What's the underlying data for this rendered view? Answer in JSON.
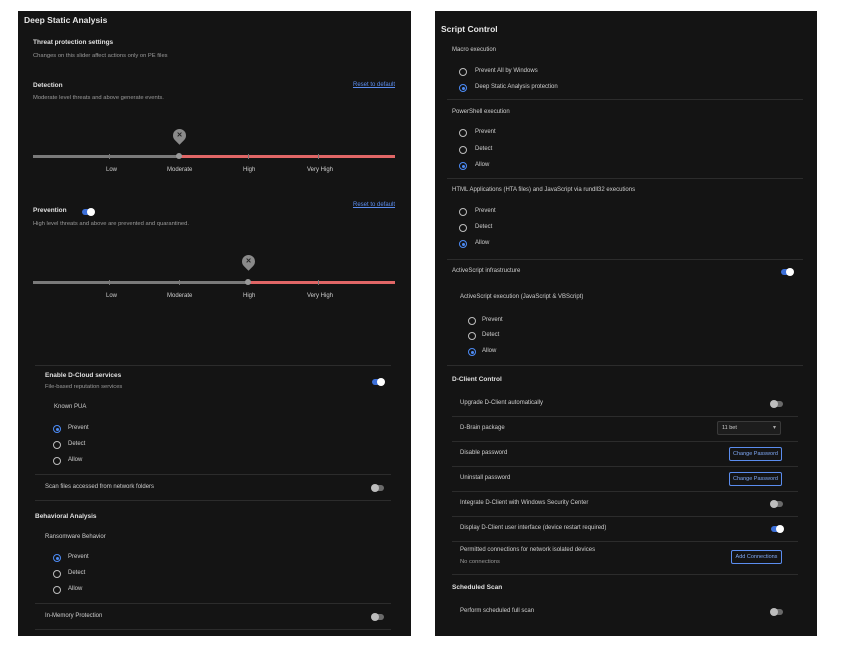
{
  "left": {
    "title": "Deep Static Analysis",
    "threat": {
      "heading": "Threat protection settings",
      "sub": "Changes on this slider affect actions only on PE files"
    },
    "detection": {
      "heading": "Detection",
      "sub": "Moderate level threats and above generate events.",
      "reset": "Reset to default",
      "level": "Moderate"
    },
    "prevention": {
      "heading": "Prevention",
      "enabled": true,
      "sub": "High level threats and above are prevented and quarantined.",
      "reset": "Reset to default",
      "level": "High"
    },
    "slider_labels": [
      "Low",
      "Moderate",
      "High",
      "Very High"
    ],
    "cloud": {
      "heading": "Enable D-Cloud services",
      "enabled": true,
      "sub": "File-based reputation services",
      "pua": "Known PUA",
      "options": [
        "Prevent",
        "Detect",
        "Allow"
      ],
      "selected": 0
    },
    "network": {
      "label": "Scan files accessed from network folders",
      "enabled": false
    },
    "behavioral": {
      "title": "Behavioral Analysis",
      "ransomware": "Ransomware Behavior",
      "options": [
        "Prevent",
        "Detect",
        "Allow"
      ],
      "selected": 0
    },
    "inmemory": {
      "label": "In-Memory Protection",
      "enabled": false
    }
  },
  "right": {
    "title": "Script Control",
    "macro": {
      "heading": "Macro execution",
      "options": [
        "Prevent All by Windows",
        "Deep Static Analysis protection"
      ],
      "selected": 1
    },
    "powershell": {
      "heading": "PowerShell execution",
      "options": [
        "Prevent",
        "Detect",
        "Allow"
      ],
      "selected": 2
    },
    "hta": {
      "heading": "HTML Applications (HTA files) and JavaScript via rundll32 executions",
      "options": [
        "Prevent",
        "Detect",
        "Allow"
      ],
      "selected": 2
    },
    "activescript": {
      "heading": "ActiveScript infrastructure",
      "enabled": true,
      "sub": "ActiveScript execution (JavaScript & VBScript)",
      "options": [
        "Prevent",
        "Detect",
        "Allow"
      ],
      "selected": 2
    },
    "dclient": {
      "heading": "D-Client Control",
      "upgrade": {
        "label": "Upgrade D-Client automatically",
        "enabled": false
      },
      "brain": {
        "label": "D-Brain package",
        "value": "11 bet"
      },
      "disable_pw": {
        "label": "Disable password",
        "button": "Change Password"
      },
      "uninstall_pw": {
        "label": "Uninstall password",
        "button": "Change Password"
      },
      "wsc": {
        "label": "Integrate D-Client with Windows Security Center",
        "enabled": false
      },
      "ui": {
        "label": "Display D-Client user interface (device restart required)",
        "enabled": true
      },
      "permitted": {
        "label": "Permitted connections for network isolated devices",
        "sub": "No connections",
        "button": "Add Connections"
      }
    },
    "scheduled": {
      "heading": "Scheduled Scan",
      "label": "Perform scheduled full scan",
      "enabled": false
    }
  },
  "colors": {
    "accent": "#4c8bf5",
    "danger_track": "#e06666",
    "panel": "#141414"
  }
}
